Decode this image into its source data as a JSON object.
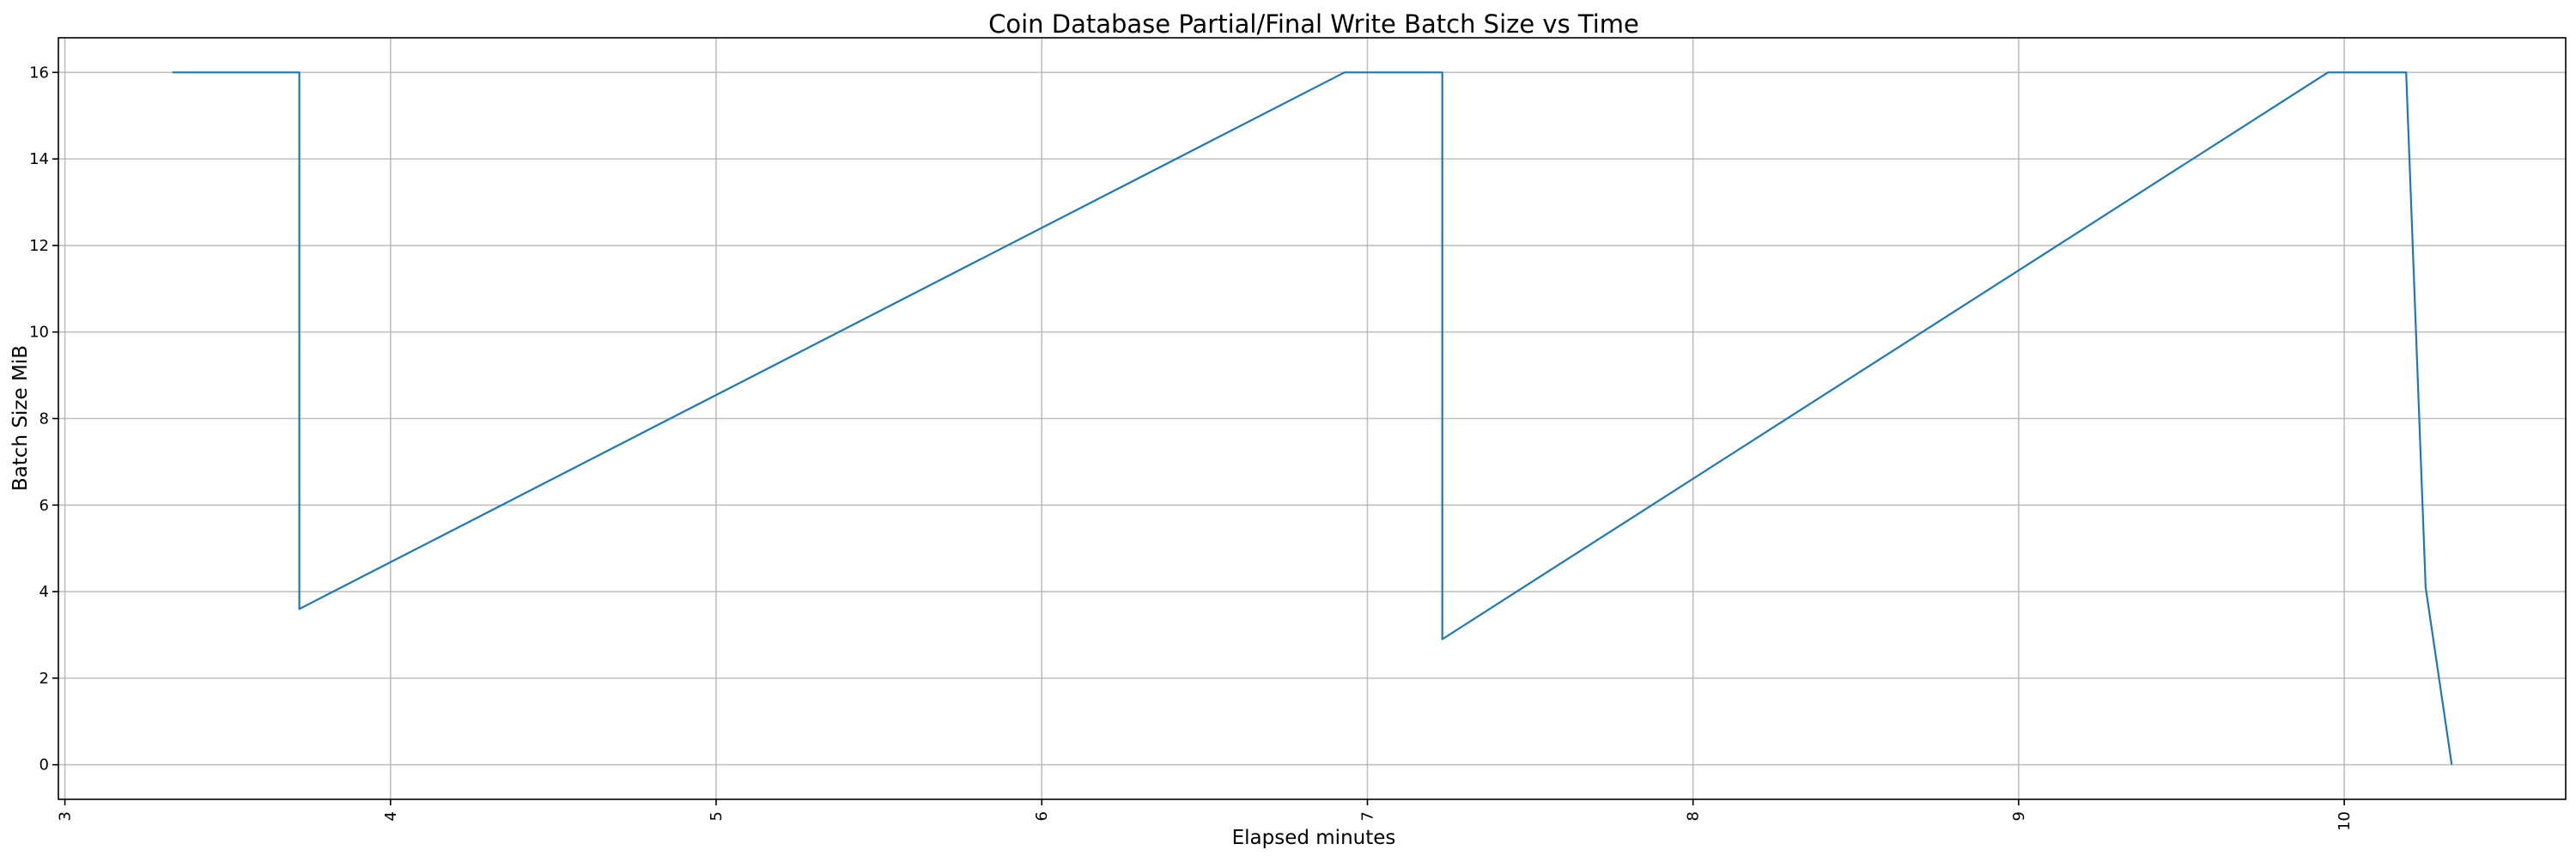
{
  "chart_data": {
    "type": "line",
    "title": "Coin Database Partial/Final Write Batch Size vs Time",
    "xlabel": "Elapsed minutes",
    "ylabel": "Batch Size MiB",
    "xlim": [
      2.98,
      10.68
    ],
    "ylim": [
      -0.8,
      16.8
    ],
    "x_ticks": [
      3,
      4,
      5,
      6,
      7,
      8,
      9,
      10
    ],
    "y_ticks": [
      0,
      2,
      4,
      6,
      8,
      10,
      12,
      14,
      16
    ],
    "grid": true,
    "legend": "none",
    "series": [
      {
        "color": "#1f77b4",
        "x": [
          3.33,
          3.72,
          3.72,
          6.93,
          7.23,
          7.23,
          9.95,
          10.19,
          10.25,
          10.33
        ],
        "y": [
          16,
          16,
          3.6,
          16,
          16,
          2.9,
          16,
          16,
          4.1,
          0
        ]
      }
    ]
  }
}
